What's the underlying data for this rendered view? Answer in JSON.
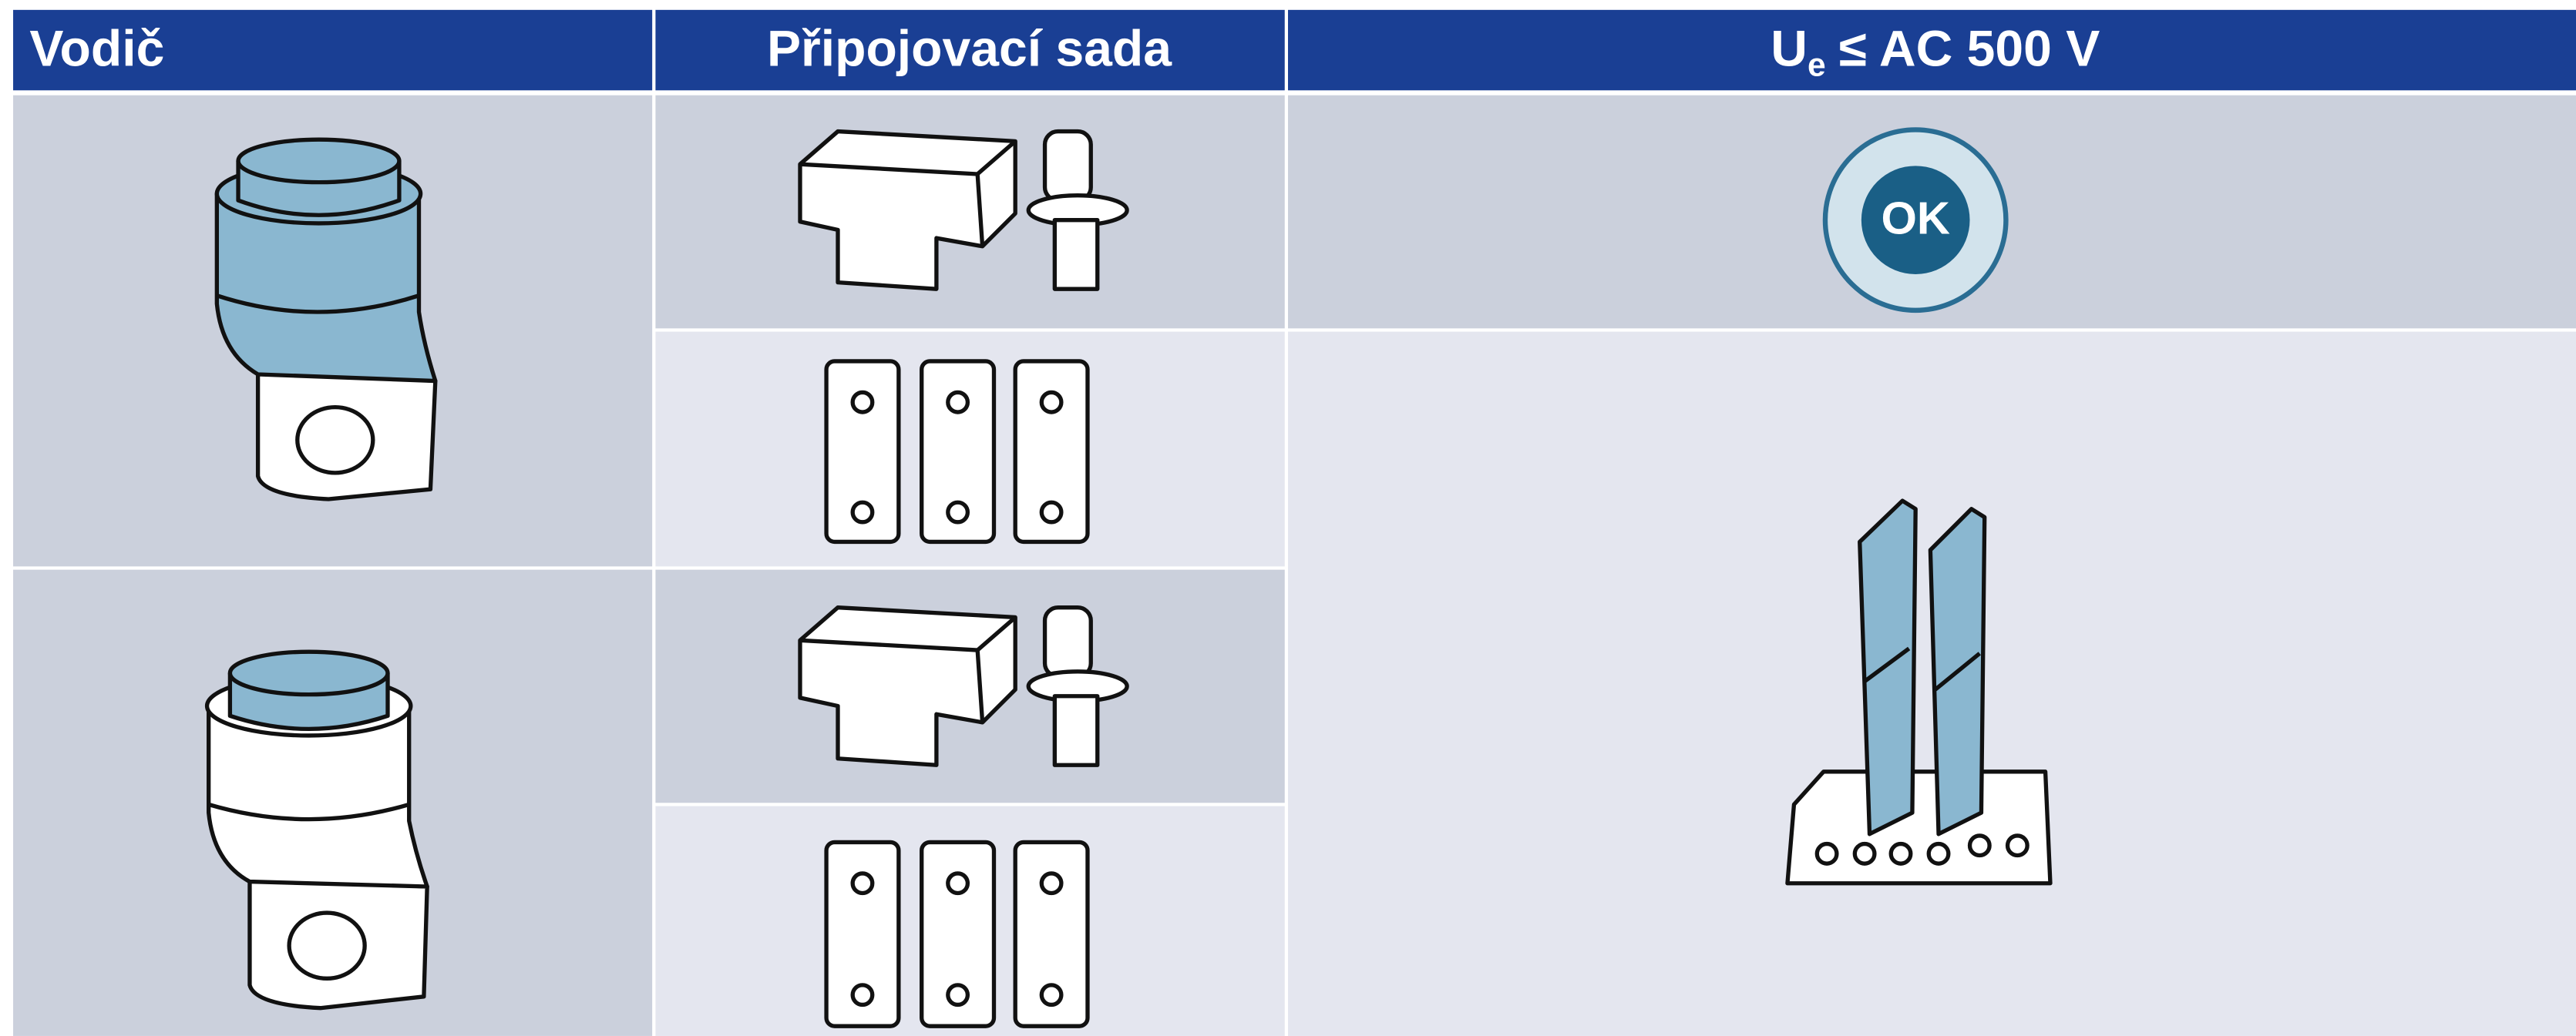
{
  "header": {
    "col1": "Vodič",
    "col2": "Připojovací sada",
    "col3": {
      "symbol": "U",
      "subscript": "e",
      "rest": "≤ AC 500 V"
    }
  },
  "rows": {
    "0": {
      "status": "OK"
    }
  }
}
